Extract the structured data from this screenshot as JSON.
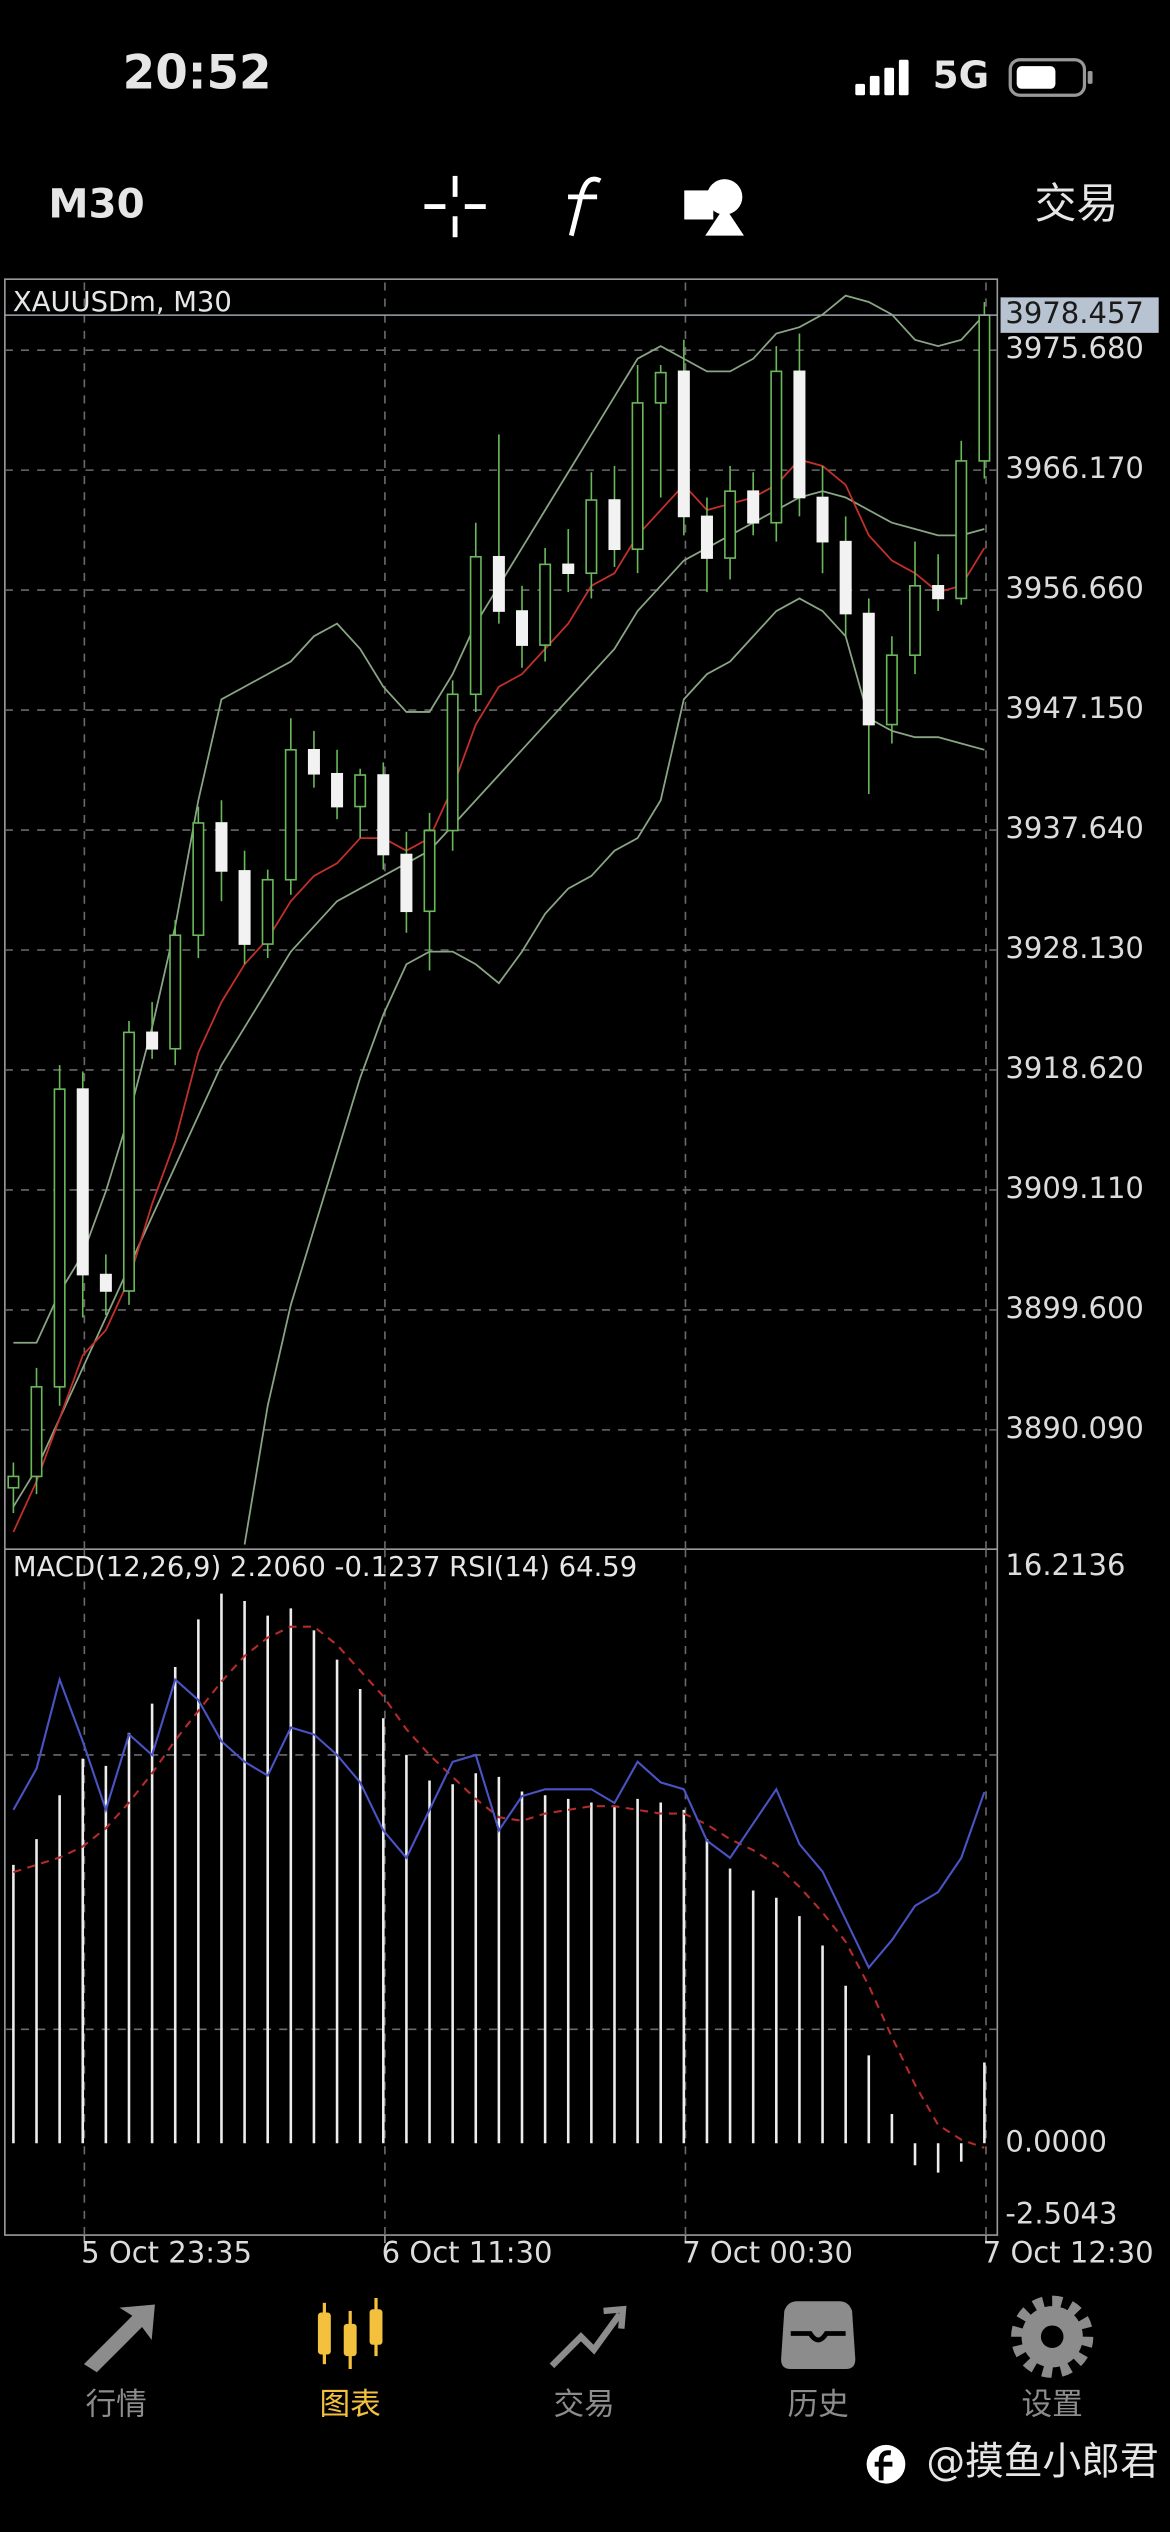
{
  "status_bar": {
    "time": "20:52",
    "network": "5G"
  },
  "toolbar": {
    "timeframe": "M30",
    "trade": "交易"
  },
  "chart_data": [
    {
      "type": "candlestick",
      "title": "XAUUSDm, M30",
      "bull_color": "#69b85a",
      "bear_color": "#f2f2f2",
      "grid": true,
      "xlim": [
        -0.37,
        42.56
      ],
      "xticks": [
        {
          "value": 3.07,
          "label": "5 Oct 23:35"
        },
        {
          "value": 16.07,
          "label": "6 Oct 11:30"
        },
        {
          "value": 29.07,
          "label": "7 Oct 00:30"
        },
        {
          "value": 42.07,
          "label": "7 Oct 12:30"
        }
      ],
      "ylim": [
        3880.63,
        3981.05
      ],
      "yticks": [
        {
          "value": 3975.68,
          "label": "3975.680"
        },
        {
          "value": 3966.17,
          "label": "3966.170"
        },
        {
          "value": 3956.66,
          "label": "3956.660"
        },
        {
          "value": 3947.15,
          "label": "3947.150"
        },
        {
          "value": 3937.64,
          "label": "3937.640"
        },
        {
          "value": 3928.13,
          "label": "3928.130"
        },
        {
          "value": 3918.62,
          "label": "3918.620"
        },
        {
          "value": 3909.11,
          "label": "3909.110"
        },
        {
          "value": 3899.6,
          "label": "3899.600"
        },
        {
          "value": 3890.09,
          "label": "3890.090"
        }
      ],
      "candles": [
        [
          3885.5,
          3887.5,
          3883.5,
          3886.4
        ],
        [
          3886.4,
          3895.0,
          3885.0,
          3893.5
        ],
        [
          3893.5,
          3919.0,
          3892.0,
          3917.1
        ],
        [
          3917.1,
          3918.5,
          3899.0,
          3902.4
        ],
        [
          3902.4,
          3904.0,
          3899.2,
          3901.1
        ],
        [
          3901.1,
          3922.5,
          3900.0,
          3921.6
        ],
        [
          3921.6,
          3924.0,
          3919.5,
          3920.3
        ],
        [
          3920.3,
          3930.5,
          3919.0,
          3929.3
        ],
        [
          3929.3,
          3939.5,
          3927.5,
          3938.2
        ],
        [
          3938.2,
          3940.0,
          3932.0,
          3934.4
        ],
        [
          3934.4,
          3936.0,
          3927.0,
          3928.6
        ],
        [
          3928.6,
          3934.5,
          3927.5,
          3933.7
        ],
        [
          3933.7,
          3946.5,
          3932.5,
          3944.0
        ],
        [
          3944.0,
          3945.5,
          3941.0,
          3942.1
        ],
        [
          3942.1,
          3944.0,
          3938.5,
          3939.5
        ],
        [
          3939.5,
          3942.5,
          3937.0,
          3942.0
        ],
        [
          3942.0,
          3943.0,
          3934.5,
          3935.7
        ],
        [
          3935.7,
          3937.5,
          3929.5,
          3931.2
        ],
        [
          3931.2,
          3939.0,
          3926.5,
          3937.6
        ],
        [
          3937.6,
          3949.5,
          3936.0,
          3948.4
        ],
        [
          3948.4,
          3962.0,
          3947.0,
          3959.3
        ],
        [
          3959.3,
          3969.0,
          3954.0,
          3955.0
        ],
        [
          3955.0,
          3957.0,
          3950.5,
          3952.3
        ],
        [
          3952.3,
          3960.0,
          3951.0,
          3958.7
        ],
        [
          3958.7,
          3961.5,
          3956.5,
          3958.0
        ],
        [
          3958.0,
          3966.0,
          3956.0,
          3963.8
        ],
        [
          3963.8,
          3966.5,
          3958.5,
          3959.9
        ],
        [
          3959.9,
          3974.5,
          3958.0,
          3971.5
        ],
        [
          3971.5,
          3974.5,
          3964.0,
          3973.9
        ],
        [
          3974.0,
          3976.5,
          3961.0,
          3962.5
        ],
        [
          3962.5,
          3964.0,
          3956.5,
          3959.2
        ],
        [
          3959.2,
          3966.5,
          3957.5,
          3964.5
        ],
        [
          3964.5,
          3966.0,
          3961.0,
          3962.0
        ],
        [
          3962.0,
          3976.0,
          3960.5,
          3974.0
        ],
        [
          3974.0,
          3977.0,
          3962.5,
          3964.0
        ],
        [
          3964.0,
          3966.5,
          3958.0,
          3960.5
        ],
        [
          3960.5,
          3962.5,
          3953.0,
          3954.8
        ],
        [
          3954.8,
          3956.0,
          3940.5,
          3946.0
        ],
        [
          3946.0,
          3953.0,
          3944.5,
          3951.5
        ],
        [
          3951.5,
          3960.5,
          3950.0,
          3957.0
        ],
        [
          3957.0,
          3959.5,
          3955.0,
          3956.0
        ],
        [
          3956.0,
          3968.5,
          3955.5,
          3966.9
        ],
        [
          3966.9,
          3979.5,
          3965.5,
          3978.457
        ]
      ],
      "overlays": [
        {
          "color": "#8aa585",
          "values": [
            3897,
            3897,
            3901,
            3904,
            3909,
            3915,
            3922,
            3930,
            3940,
            3948,
            3949,
            3950,
            3951,
            3953,
            3954,
            3952,
            3949,
            3947,
            3947,
            3950,
            3954,
            3957,
            3960,
            3963,
            3966,
            3969,
            3972,
            3975,
            3976,
            3975,
            3974,
            3974,
            3975,
            3977,
            3977.5,
            3978.5,
            3980,
            3979.5,
            3978.5,
            3976.5,
            3976,
            3976.5,
            3978.5
          ]
        },
        {
          "color": "#8aa585",
          "values": [
            3884,
            3887,
            3891,
            3895,
            3899,
            3903,
            3907,
            3911,
            3915,
            3919,
            3922,
            3925,
            3928,
            3930,
            3932,
            3933,
            3934,
            3935,
            3936,
            3938,
            3940,
            3942,
            3944,
            3946,
            3948,
            3950,
            3952,
            3955,
            3957,
            3959,
            3960,
            3961,
            3962,
            3963,
            3964,
            3964.5,
            3964,
            3963,
            3962,
            3961.5,
            3961,
            3961,
            3961.5
          ]
        },
        {
          "color": "#8aa585",
          "values": [
            null,
            null,
            null,
            null,
            null,
            null,
            null,
            null,
            null,
            null,
            3881,
            3892,
            3900,
            3906,
            3912,
            3918,
            3923,
            3927,
            3928,
            3928,
            3927,
            3925.5,
            3928,
            3931,
            3933,
            3934,
            3936,
            3937,
            3940,
            3948,
            3950,
            3951,
            3953,
            3955,
            3956,
            3955,
            3953,
            3946.5,
            3945.5,
            3945,
            3945,
            3944.5,
            3944
          ]
        },
        {
          "color": "#c3302a",
          "values": [
            3882,
            3886,
            3891,
            3896,
            3898,
            3902,
            3908,
            3913,
            3920,
            3924,
            3927,
            3929,
            3932,
            3934,
            3935,
            3937,
            3937,
            3936,
            3937,
            3941,
            3946,
            3949,
            3950,
            3952,
            3954,
            3957,
            3958,
            3961,
            3963,
            3965,
            3963,
            3963.5,
            3964,
            3965,
            3967,
            3966.5,
            3965,
            3961,
            3959,
            3958,
            3956.5,
            3957,
            3960
          ]
        }
      ]
    },
    {
      "type": "macd",
      "title": "MACD(12,26,9) 2.2060 -0.1237 RSI(14) 64.59",
      "ylim": [
        -2.5043,
        16.2136
      ],
      "yticks": [
        16.2136,
        {
          "value": 0,
          "label": "0.0000"
        },
        -2.5043
      ],
      "y2lim": [
        0,
        100
      ],
      "y2ticks": [
        30,
        70
      ],
      "color": "#ededed",
      "values": [
        7.6,
        8.3,
        9.5,
        10.5,
        10.3,
        11.2,
        12.0,
        13.0,
        14.3,
        15.0,
        14.8,
        14.4,
        14.6,
        14.0,
        13.2,
        12.4,
        11.6,
        10.6,
        9.9,
        9.8,
        10.1,
        10.0,
        9.6,
        9.5,
        9.4,
        9.3,
        9.2,
        9.4,
        9.3,
        9.1,
        8.3,
        7.5,
        6.9,
        6.7,
        6.2,
        5.4,
        4.3,
        2.4,
        0.8,
        -0.6,
        -0.8,
        -0.5,
        2.206
      ],
      "signal": {
        "color": "#b32b2b",
        "dashed": true,
        "values": [
          7.4,
          7.6,
          7.8,
          8.1,
          8.6,
          9.3,
          10.1,
          11.0,
          11.8,
          12.6,
          13.3,
          13.8,
          14.1,
          14.1,
          13.6,
          12.9,
          12.2,
          11.3,
          10.6,
          10.0,
          9.4,
          8.9,
          8.8,
          9.0,
          9.1,
          9.2,
          9.2,
          9.1,
          9.0,
          9.0,
          8.7,
          8.3,
          8.0,
          7.6,
          7.0,
          6.3,
          5.5,
          4.3,
          2.9,
          1.6,
          0.5,
          0.1,
          -0.1237
        ]
      },
      "rsi": {
        "color": "#4a53c4",
        "axis": "y2",
        "values": [
          62,
          68,
          81,
          72,
          62,
          73,
          70,
          81,
          78,
          72,
          69,
          67,
          74,
          73,
          70,
          66,
          59,
          55,
          62,
          69,
          70,
          59,
          64,
          65,
          65,
          65,
          63,
          69,
          66,
          65,
          57.5,
          55,
          60,
          65,
          57,
          53,
          46,
          39,
          43,
          48,
          50,
          55,
          64.59
        ]
      }
    }
  ],
  "nav": {
    "active": 1,
    "items": [
      "行情",
      "图表",
      "交易",
      "历史",
      "设置"
    ],
    "color": "#8c8c8c",
    "active_color": "#f4c13e"
  },
  "watermark": "@摸鱼小郎君"
}
